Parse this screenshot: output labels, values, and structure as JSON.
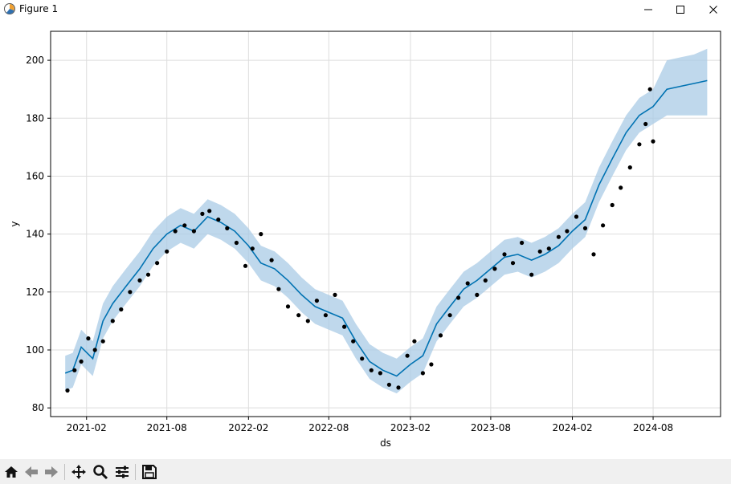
{
  "window": {
    "title": "Figure 1",
    "minimize_icon": "minimize-icon",
    "maximize_icon": "maximize-icon",
    "close_icon": "close-icon"
  },
  "toolbar": {
    "buttons": [
      {
        "name": "home",
        "icon": "home-icon"
      },
      {
        "name": "back",
        "icon": "arrow-left-icon"
      },
      {
        "name": "forward",
        "icon": "arrow-right-icon"
      },
      {
        "name": "pan",
        "icon": "move-icon"
      },
      {
        "name": "zoom",
        "icon": "zoom-icon"
      },
      {
        "name": "configure",
        "icon": "sliders-icon"
      },
      {
        "name": "save",
        "icon": "save-icon"
      }
    ]
  },
  "chart_data": {
    "type": "line",
    "title": "",
    "xlabel": "ds",
    "ylabel": "y",
    "grid": true,
    "xlim": [
      "2020-11-12",
      "2024-12-31"
    ],
    "ylim": [
      77,
      210
    ],
    "x_ticks": [
      "2021-02",
      "2021-08",
      "2022-02",
      "2022-08",
      "2023-02",
      "2023-08",
      "2024-02",
      "2024-08"
    ],
    "y_ticks": [
      80,
      100,
      120,
      140,
      160,
      180,
      200
    ],
    "colors": {
      "forecast": "#0072b2",
      "band": "#a9cbe6",
      "points": "#000000",
      "grid": "#dddddd"
    },
    "series": [
      {
        "kind": "forecast",
        "x": [
          "2020-12-15",
          "2021-01-01",
          "2021-01-20",
          "2021-02-15",
          "2021-03-10",
          "2021-04-01",
          "2021-05-01",
          "2021-06-01",
          "2021-07-01",
          "2021-08-01",
          "2021-09-01",
          "2021-10-01",
          "2021-11-01",
          "2021-12-01",
          "2022-01-01",
          "2022-02-01",
          "2022-03-01",
          "2022-04-01",
          "2022-05-01",
          "2022-06-01",
          "2022-07-01",
          "2022-08-01",
          "2022-09-01",
          "2022-10-01",
          "2022-11-01",
          "2022-12-01",
          "2023-01-01",
          "2023-02-01",
          "2023-03-01",
          "2023-04-01",
          "2023-05-01",
          "2023-06-01",
          "2023-07-01",
          "2023-08-01",
          "2023-09-01",
          "2023-10-01",
          "2023-11-01",
          "2023-12-01",
          "2024-01-01",
          "2024-02-01",
          "2024-03-01",
          "2024-04-01",
          "2024-05-01",
          "2024-06-01",
          "2024-07-01",
          "2024-08-01",
          "2024-09-01",
          "2024-10-01",
          "2024-11-01",
          "2024-12-01"
        ],
        "yhat": [
          92,
          93,
          101,
          97,
          110,
          116,
          122,
          128,
          135,
          140,
          143,
          141,
          146,
          144,
          141,
          136,
          130,
          128,
          124,
          119,
          115,
          113,
          111,
          103,
          96,
          93,
          91,
          95,
          98,
          109,
          115,
          121,
          124,
          128,
          132,
          133,
          131,
          133,
          136,
          141,
          145,
          157,
          166,
          175,
          181,
          184,
          190,
          191,
          192,
          193
        ],
        "lower": [
          86,
          87,
          95,
          91,
          104,
          110,
          116,
          122,
          129,
          134,
          137,
          135,
          140,
          138,
          135,
          130,
          124,
          122,
          118,
          113,
          109,
          107,
          105,
          97,
          90,
          87,
          85,
          89,
          92,
          103,
          109,
          115,
          118,
          122,
          126,
          127,
          125,
          127,
          130,
          135,
          139,
          151,
          160,
          169,
          175,
          178,
          181,
          181,
          181,
          181
        ],
        "upper": [
          98,
          99,
          107,
          103,
          116,
          122,
          128,
          134,
          141,
          146,
          149,
          147,
          152,
          150,
          147,
          142,
          136,
          134,
          130,
          125,
          121,
          119,
          117,
          109,
          102,
          99,
          97,
          101,
          104,
          115,
          121,
          127,
          130,
          134,
          138,
          139,
          137,
          139,
          142,
          147,
          151,
          163,
          172,
          181,
          187,
          190,
          200,
          201,
          202,
          204
        ]
      },
      {
        "kind": "actual",
        "x": [
          "2020-12-20",
          "2021-01-05",
          "2021-01-20",
          "2021-02-05",
          "2021-02-20",
          "2021-03-10",
          "2021-04-01",
          "2021-04-20",
          "2021-05-10",
          "2021-06-01",
          "2021-06-20",
          "2021-07-10",
          "2021-08-01",
          "2021-08-20",
          "2021-09-10",
          "2021-10-01",
          "2021-10-20",
          "2021-11-05",
          "2021-11-25",
          "2021-12-15",
          "2022-01-05",
          "2022-01-25",
          "2022-02-10",
          "2022-03-01",
          "2022-03-25",
          "2022-04-10",
          "2022-05-01",
          "2022-05-25",
          "2022-06-15",
          "2022-07-05",
          "2022-07-25",
          "2022-08-15",
          "2022-09-05",
          "2022-09-25",
          "2022-10-15",
          "2022-11-05",
          "2022-11-25",
          "2022-12-15",
          "2023-01-05",
          "2023-01-25",
          "2023-02-10",
          "2023-03-01",
          "2023-03-20",
          "2023-04-10",
          "2023-05-01",
          "2023-05-20",
          "2023-06-10",
          "2023-07-01",
          "2023-07-20",
          "2023-08-10",
          "2023-09-01",
          "2023-09-20",
          "2023-10-10",
          "2023-11-01",
          "2023-11-20",
          "2023-12-10",
          "2024-01-01",
          "2024-01-20",
          "2024-02-10",
          "2024-03-01",
          "2024-03-20",
          "2024-04-10",
          "2024-05-01",
          "2024-05-20",
          "2024-06-10",
          "2024-07-01",
          "2024-07-15",
          "2024-07-25",
          "2024-08-01"
        ],
        "y": [
          86,
          93,
          96,
          104,
          100,
          103,
          110,
          114,
          120,
          124,
          126,
          130,
          134,
          141,
          143,
          141,
          147,
          148,
          145,
          142,
          137,
          129,
          135,
          140,
          131,
          121,
          115,
          112,
          110,
          117,
          112,
          119,
          108,
          103,
          97,
          93,
          92,
          88,
          87,
          98,
          103,
          92,
          95,
          105,
          112,
          118,
          123,
          119,
          124,
          128,
          133,
          130,
          137,
          126,
          134,
          135,
          139,
          141,
          146,
          142,
          133,
          143,
          150,
          156,
          163,
          171,
          178,
          190,
          172
        ]
      }
    ]
  }
}
